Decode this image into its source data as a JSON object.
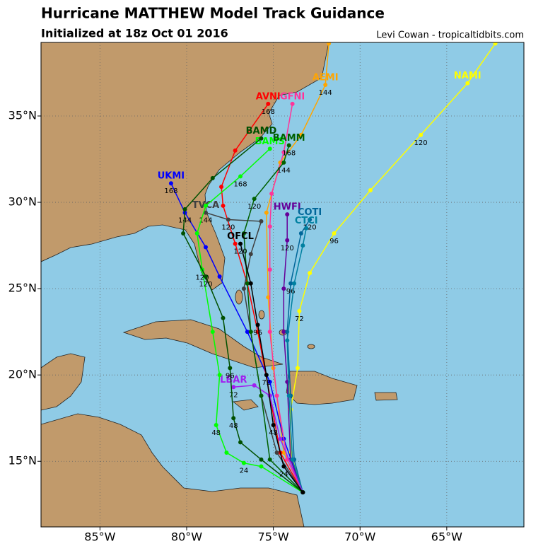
{
  "chart_data": {
    "type": "track-map",
    "title": "Hurricane MATTHEW Model Track Guidance",
    "subtitle": "Initialized at 18z Oct 01 2016",
    "credit": "Levi Cowan - tropicaltidbits.com",
    "xlim": [
      -88.4,
      -60.55
    ],
    "ylim": [
      11.2,
      39.26
    ],
    "xticks": [
      {
        "value": -85,
        "label": "85°W"
      },
      {
        "value": -80,
        "label": "80°W"
      },
      {
        "value": -75,
        "label": "75°W"
      },
      {
        "value": -70,
        "label": "70°W"
      },
      {
        "value": -65,
        "label": "65°W"
      }
    ],
    "yticks": [
      {
        "value": 15,
        "label": "15°N"
      },
      {
        "value": 20,
        "label": "20°N"
      },
      {
        "value": 25,
        "label": "25°N"
      },
      {
        "value": 30,
        "label": "30°N"
      },
      {
        "value": 35,
        "label": "35°N"
      }
    ],
    "grid": true,
    "series": [
      {
        "name": "AEMI",
        "color": "#ffa500",
        "x": [
          -73.3,
          -74.4,
          -75.0,
          -75.3,
          -75.4,
          -74.6,
          -73.4,
          -72.0,
          -71.8
        ],
        "values": [
          13.2,
          15.5,
          20.4,
          24.5,
          29.4,
          32.3,
          33.9,
          36.8,
          39.2
        ],
        "point_labels": [
          null,
          null,
          null,
          null,
          null,
          null,
          null,
          "144",
          null
        ]
      },
      {
        "name": "NAMI",
        "color": "#ffff00",
        "x": [
          -73.3,
          -74.0,
          -74.0,
          -73.6,
          -73.5,
          -72.9,
          -71.5,
          -69.4,
          -66.5,
          -63.8,
          -62.2
        ],
        "values": [
          13.2,
          15.5,
          18.0,
          20.4,
          23.7,
          25.9,
          28.2,
          30.7,
          33.9,
          36.9,
          39.2
        ],
        "point_labels": [
          null,
          null,
          null,
          null,
          "72",
          null,
          "96",
          null,
          "120",
          null,
          null
        ]
      },
      {
        "name": "UKMI",
        "color": "#0000ff",
        "x": [
          -73.3,
          -74.4,
          -75.2,
          -76.5,
          -78.1,
          -78.9,
          -80.1,
          -80.9
        ],
        "values": [
          13.2,
          16.3,
          19.6,
          22.5,
          25.7,
          27.4,
          29.4,
          31.1
        ],
        "point_labels": [
          null,
          null,
          null,
          null,
          null,
          null,
          "144",
          "168"
        ]
      },
      {
        "name": "AVNI",
        "color": "#ff0000",
        "x": [
          -73.3,
          -74.6,
          -75.2,
          -75.9,
          -76.5,
          -77.2,
          -77.9,
          -78.0,
          -77.2,
          -75.3
        ],
        "values": [
          13.2,
          15.5,
          18.8,
          22.5,
          25.3,
          27.6,
          29.8,
          30.9,
          33.0,
          35.7
        ],
        "point_labels": [
          null,
          null,
          null,
          null,
          null,
          null,
          null,
          null,
          null,
          "168"
        ]
      },
      {
        "name": "GFNI",
        "color": "#ff3399",
        "x": [
          -73.3,
          -74.2,
          -74.8,
          -75.2,
          -75.2,
          -75.2,
          -75.1,
          -74.4,
          -73.9
        ],
        "values": [
          13.2,
          15.1,
          18.8,
          22.5,
          26.1,
          28.6,
          30.5,
          32.9,
          35.7
        ],
        "point_labels": [
          null,
          null,
          null,
          null,
          null,
          null,
          null,
          null,
          null
        ]
      },
      {
        "name": "HWFI",
        "color": "#660099",
        "x": [
          -73.3,
          -74.0,
          -74.2,
          -74.4,
          -74.4,
          -74.2,
          -74.2
        ],
        "values": [
          13.2,
          15.1,
          19.6,
          22.5,
          25.0,
          27.8,
          29.3
        ],
        "point_labels": [
          null,
          null,
          null,
          null,
          null,
          "120",
          null
        ]
      },
      {
        "name": "COTI",
        "color": "#006699",
        "x": [
          -73.3,
          -73.8,
          -74.0,
          -74.2,
          -74.0,
          -73.4,
          -72.9
        ],
        "values": [
          13.2,
          15.1,
          18.8,
          22.5,
          25.3,
          28.2,
          29.0
        ],
        "point_labels": [
          null,
          null,
          null,
          null,
          "96",
          null,
          "120"
        ]
      },
      {
        "name": "CTCI",
        "color": "#0080a0",
        "x": [
          -73.3,
          -73.9,
          -74.1,
          -74.2,
          -73.8,
          -73.3,
          -73.1
        ],
        "values": [
          13.2,
          15.1,
          18.8,
          22.0,
          25.3,
          27.5,
          28.5
        ],
        "point_labels": [
          null,
          null,
          null,
          null,
          null,
          null,
          null
        ]
      },
      {
        "name": "TVCA",
        "color": "#404040",
        "x": [
          -73.3,
          -74.8,
          -75.7,
          -76.3,
          -76.7,
          -76.3,
          -75.7,
          -77.6,
          -78.9
        ],
        "values": [
          13.2,
          15.5,
          18.8,
          22.5,
          25.0,
          27.0,
          28.9,
          29.0,
          29.4
        ],
        "point_labels": [
          null,
          null,
          null,
          null,
          null,
          null,
          null,
          "120",
          "144"
        ]
      },
      {
        "name": "LBAR",
        "color": "#a020f0",
        "x": [
          -73.3,
          -74.6,
          -75.2,
          -76.1,
          -77.3
        ],
        "values": [
          13.2,
          16.3,
          18.8,
          19.4,
          19.3
        ],
        "point_labels": [
          null,
          null,
          null,
          null,
          "72"
        ]
      },
      {
        "name": "BAMS",
        "color": "#00ff00",
        "x": [
          -73.3,
          -75.7,
          -76.7,
          -77.7,
          -78.3,
          -78.1,
          -78.5,
          -79.1,
          -79.4,
          -78.9,
          -76.9,
          -75.2
        ],
        "values": [
          13.2,
          14.7,
          14.9,
          15.5,
          17.1,
          20.0,
          22.5,
          26.1,
          28.2,
          29.8,
          31.5,
          33.1
        ],
        "point_labels": [
          null,
          null,
          "24",
          null,
          "48",
          null,
          null,
          "120",
          null,
          null,
          "168",
          null
        ]
      },
      {
        "name": "BAMD",
        "color": "#005000",
        "x": [
          -73.3,
          -75.7,
          -76.9,
          -77.3,
          -77.5,
          -77.9,
          -78.9,
          -80.2,
          -80.1,
          -78.5,
          -75.7
        ],
        "values": [
          13.2,
          15.1,
          16.1,
          17.5,
          20.4,
          23.3,
          25.7,
          28.2,
          29.6,
          31.4,
          33.7
        ],
        "point_labels": [
          null,
          null,
          null,
          "48",
          "96",
          null,
          "120",
          null,
          null,
          null,
          null
        ]
      },
      {
        "name": "BAMM",
        "color": "#006000",
        "x": [
          -73.3,
          -75.2,
          -75.7,
          -76.3,
          -76.5,
          -76.7,
          -76.1,
          -74.4,
          -74.1
        ],
        "values": [
          13.2,
          15.1,
          18.8,
          22.5,
          25.3,
          28.2,
          30.2,
          32.3,
          33.3
        ],
        "point_labels": [
          null,
          null,
          null,
          null,
          null,
          null,
          "120",
          "144",
          "168"
        ]
      },
      {
        "name": "OFCL",
        "color": "#000000",
        "x": [
          -73.3,
          -74.4,
          -75.0,
          -75.4,
          -75.9,
          -76.3,
          -76.9
        ],
        "values": [
          13.2,
          14.7,
          17.1,
          20.0,
          22.9,
          25.3,
          27.6
        ],
        "point_labels": [
          null,
          "24",
          "48",
          "72",
          "96",
          null,
          "120"
        ]
      }
    ]
  }
}
